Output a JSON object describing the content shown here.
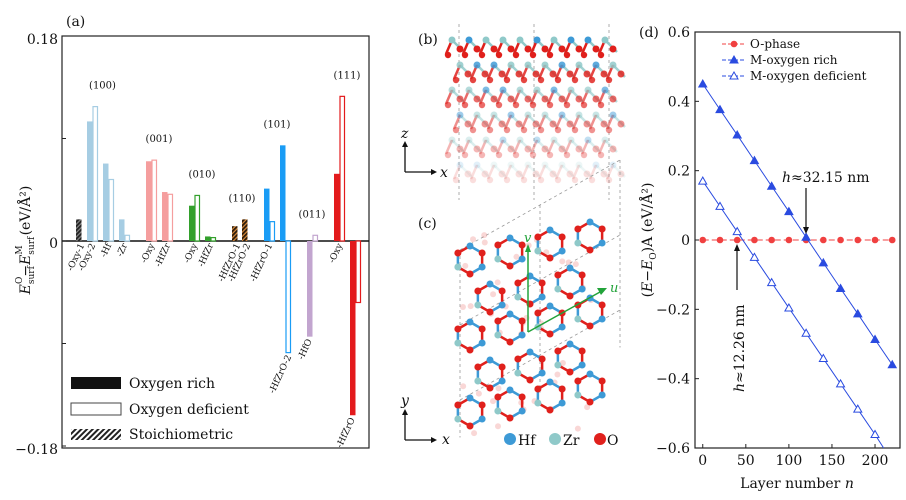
{
  "panel_labels": {
    "a": "(a)",
    "b": "(b)",
    "c": "(c)",
    "d": "(d)"
  },
  "chart_data": [
    {
      "type": "bar",
      "panel": "(a)",
      "ylabel": "E_surf^O − E_surf^M (eV/Å²)",
      "ylabel_parts": {
        "E": "E",
        "sub": "surf",
        "supO": "O",
        "supM": "M",
        "minus": "−",
        "unit": "(eV/Å²)"
      },
      "ylim": [
        -0.18,
        0.18
      ],
      "yticks": [
        "0.18",
        "0",
        "−0.18"
      ],
      "legend": {
        "position": "bottom-left",
        "entries": [
          "Oxygen rich",
          "Oxygen deficient",
          "Stoichiometric"
        ]
      },
      "groups": [
        {
          "label": "(100)",
          "color": "#a6cde3",
          "bars": [
            {
              "label": "-Oxy-1",
              "stoichiometric": 0.019,
              "color": "#222222"
            },
            {
              "label": "-Oxy-2",
              "rich": 0.105,
              "deficient": 0.118
            },
            {
              "label": "-Hf",
              "rich": 0.068,
              "deficient": 0.054
            },
            {
              "label": "-Zr",
              "rich": 0.019,
              "deficient": 0.005
            }
          ]
        },
        {
          "label": "(001)",
          "color": "#f59e9e",
          "bars": [
            {
              "label": "-Oxy",
              "rich": 0.07,
              "deficient": 0.071
            },
            {
              "label": "-HfZr",
              "rich": 0.043,
              "deficient": 0.041
            }
          ]
        },
        {
          "label": "(010)",
          "color": "#33a02c",
          "bars": [
            {
              "label": "-Oxy",
              "rich": 0.031,
              "deficient": 0.04
            },
            {
              "label": "-HfZr",
              "rich": 0.004,
              "deficient": 0.003
            }
          ]
        },
        {
          "label": "(110)",
          "color": "#6b4420",
          "bars": [
            {
              "label": "-HfZrO-1",
              "stoichiometric": 0.013
            },
            {
              "label": "-HfZrO-2",
              "stoichiometric": 0.019
            }
          ]
        },
        {
          "label": "(101)",
          "color": "#1a9cf5",
          "bars": [
            {
              "label": "-HfZrO-1",
              "rich": 0.046,
              "deficient": 0.017
            },
            {
              "label": "-HfZrO-2",
              "rich": 0.084,
              "deficient": -0.098
            }
          ]
        },
        {
          "label": "(011)",
          "color": "#c2a5cf",
          "bars": [
            {
              "label": "-HfO",
              "rich": -0.084,
              "deficient": 0.005
            }
          ]
        },
        {
          "label": "(111)",
          "color": "#e31a1c",
          "bars": [
            {
              "label": "-Oxy",
              "rich": 0.059,
              "deficient": 0.127
            },
            {
              "label": "-HfZrO",
              "rich": -0.153,
              "deficient": -0.054
            }
          ]
        }
      ]
    },
    {
      "type": "line",
      "panel": "(d)",
      "xlabel": "Layer number",
      "xlabel_var": "n",
      "ylabel": "(E−E_O)A (eV/Å²)",
      "ylabel_parts": {
        "open": "(",
        "E": "E",
        "minus": "−",
        "sub": "O",
        "close": ")A",
        "unit": "(eV/Å²)"
      },
      "xlim": [
        -9,
        229
      ],
      "ylim": [
        -0.6,
        0.6
      ],
      "xticks": [
        0,
        50,
        100,
        150,
        200
      ],
      "yticks": [
        0.6,
        0.4,
        0.2,
        0,
        -0.2,
        -0.4,
        -0.6
      ],
      "ytick_labels": [
        "0.6",
        "0.4",
        "0.2",
        "0",
        "−0.2",
        "−0.4",
        "−0.6"
      ],
      "legend": {
        "position": "top-right"
      },
      "x": [
        0,
        20,
        40,
        60,
        80,
        100,
        120,
        140,
        160,
        180,
        200,
        220
      ],
      "series": [
        {
          "name": "O-phase",
          "color": "#f04040",
          "marker": "filled-circle",
          "dashed": true,
          "values": [
            0,
            0,
            0,
            0,
            0,
            0,
            0,
            0,
            0,
            0,
            0,
            0
          ]
        },
        {
          "name": "M-oxygen rich",
          "color": "#2a4be0",
          "marker": "filled-triangle",
          "values": [
            0.45,
            0.376,
            0.303,
            0.229,
            0.155,
            0.082,
            0.008,
            -0.066,
            -0.14,
            -0.213,
            -0.287,
            -0.36
          ]
        },
        {
          "name": "M-oxygen deficient",
          "color": "#2a4be0",
          "marker": "open-triangle",
          "values": [
            0.17,
            0.097,
            0.024,
            -0.05,
            -0.123,
            -0.196,
            -0.269,
            -0.342,
            -0.415,
            -0.488,
            -0.561,
            null
          ],
          "line_end": [
            210,
            -0.6
          ]
        }
      ],
      "annotations": [
        {
          "text": "h≈32.15 nm",
          "var": "h",
          "rest": "≈32.15 nm",
          "arrow_to": [
            120,
            0
          ]
        },
        {
          "text": "h≈12.26 nm",
          "var": "h",
          "rest": "≈12.26 nm",
          "arrow_to": [
            40,
            0
          ],
          "rotated": true
        }
      ]
    }
  ],
  "structure": {
    "b_axes": {
      "vertical": "z",
      "horizontal": "x"
    },
    "c_axes": {
      "vertical": "y",
      "horizontal": "x"
    },
    "c_vectors": {
      "u": "u",
      "v": "v",
      "color": "#22a33a"
    },
    "atom_legend": [
      {
        "label": "Hf",
        "color": "#3d9ad6"
      },
      {
        "label": "Zr",
        "color": "#8fc9c9"
      },
      {
        "label": "O",
        "color": "#e0201c"
      }
    ]
  }
}
